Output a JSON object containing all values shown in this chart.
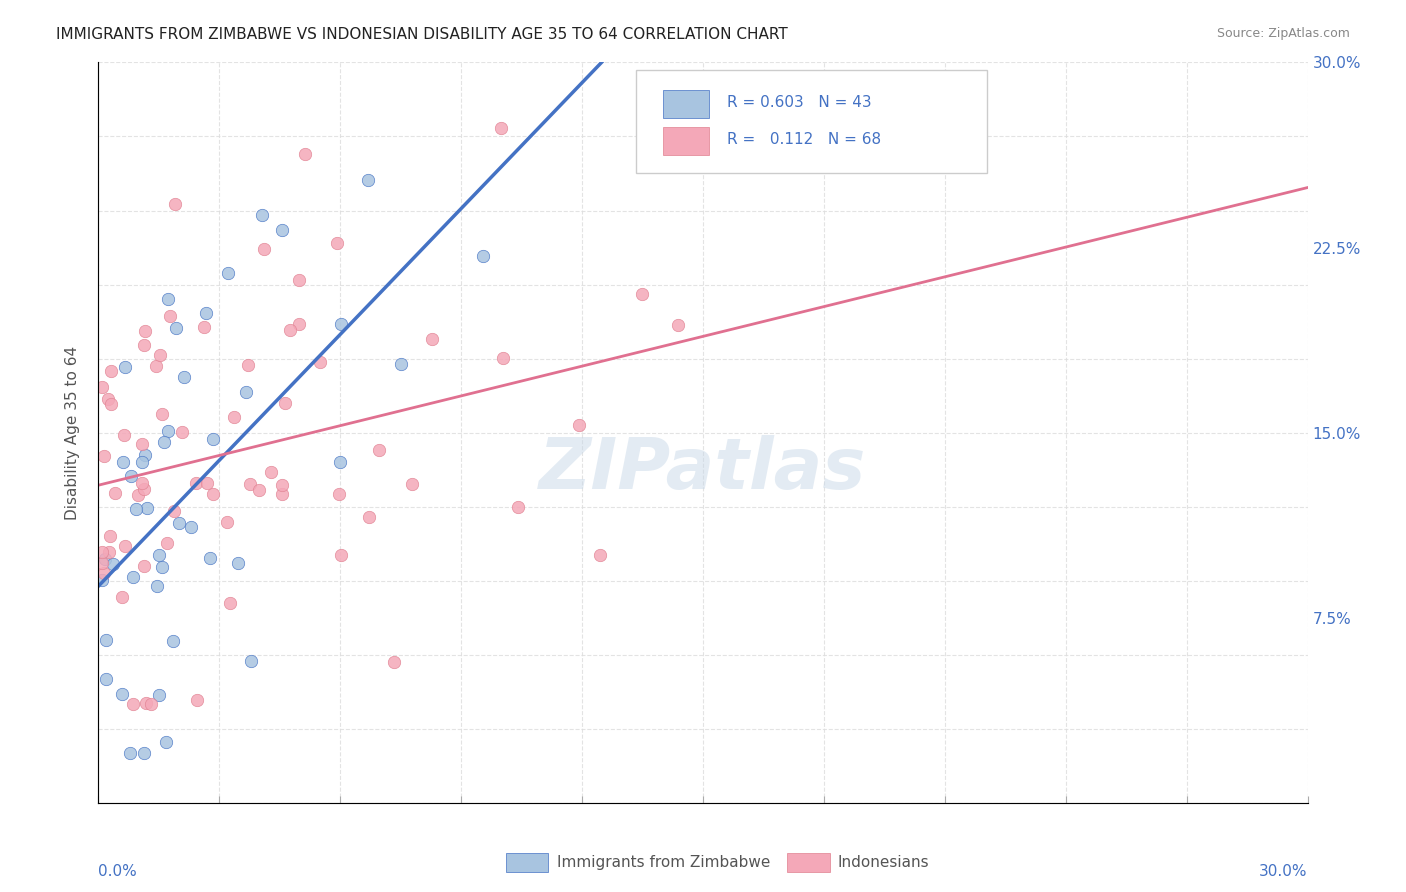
{
  "title": "IMMIGRANTS FROM ZIMBABWE VS INDONESIAN DISABILITY AGE 35 TO 64 CORRELATION CHART",
  "source": "Source: ZipAtlas.com",
  "ylabel": "Disability Age 35 to 64",
  "legend_label1": "Immigrants from Zimbabwe",
  "legend_label2": "Indonesians",
  "R1": "0.603",
  "N1": "43",
  "R2": "0.112",
  "N2": "68",
  "xlim": [
    0.0,
    0.3
  ],
  "ylim": [
    0.0,
    0.3
  ],
  "background_color": "#ffffff",
  "grid_color": "#dddddd",
  "color_zimbabwe": "#a8c4e0",
  "color_indonesian": "#f4a8b8",
  "line_color_zimbabwe": "#4472c4",
  "line_color_indonesian": "#e07090",
  "watermark": "ZIPatlas"
}
